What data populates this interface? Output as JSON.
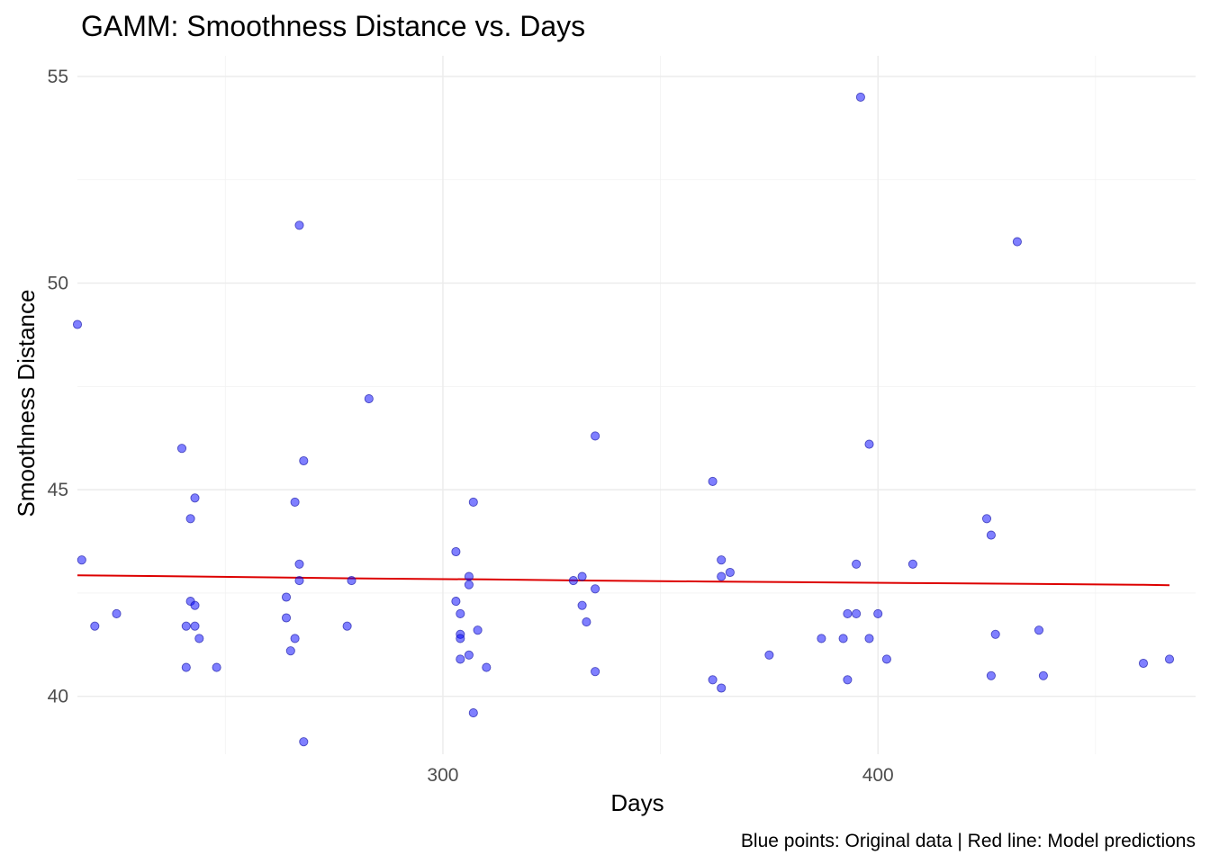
{
  "chart_data": {
    "type": "scatter",
    "title": "GAMM: Smoothness Distance vs. Days",
    "xlabel": "Days",
    "ylabel": "Smoothness Distance",
    "caption": "Blue points: Original data | Red line: Model predictions",
    "xlim": [
      216,
      473
    ],
    "ylim": [
      38.6,
      55.5
    ],
    "x_major_ticks": [
      300,
      400
    ],
    "x_minor_ticks": [
      250,
      350,
      450
    ],
    "y_major_ticks": [
      40,
      45,
      50,
      55
    ],
    "y_minor_ticks": [
      42.5,
      47.5,
      52.5
    ],
    "grid": true,
    "legend": "none",
    "point_color": "#0000ff",
    "line_color": "#dd0000",
    "series": [
      {
        "type": "scatter",
        "x": [
          216,
          217,
          220,
          225,
          240,
          241,
          241,
          242,
          242,
          243,
          243,
          243,
          244,
          248,
          264,
          264,
          265,
          266,
          266,
          267,
          267,
          267,
          268,
          268,
          278,
          279,
          283,
          303,
          303,
          304,
          304,
          304,
          304,
          306,
          306,
          306,
          307,
          307,
          308,
          310,
          330,
          332,
          332,
          333,
          335,
          335,
          335,
          362,
          362,
          364,
          364,
          364,
          366,
          375,
          387,
          392,
          393,
          393,
          395,
          395,
          396,
          398,
          398,
          400,
          402,
          408,
          425,
          426,
          426,
          427,
          432,
          437,
          438,
          461,
          467
        ],
        "y": [
          49.0,
          43.3,
          41.7,
          42.0,
          46.0,
          41.7,
          40.7,
          44.3,
          42.3,
          44.8,
          42.2,
          41.7,
          41.4,
          40.7,
          41.9,
          42.4,
          41.1,
          41.4,
          44.7,
          43.2,
          42.8,
          51.4,
          45.7,
          38.9,
          41.7,
          42.8,
          47.2,
          42.3,
          43.5,
          41.5,
          42.0,
          41.4,
          40.9,
          42.7,
          41.0,
          42.9,
          39.6,
          44.7,
          41.6,
          40.7,
          42.8,
          42.9,
          42.2,
          41.8,
          46.3,
          42.6,
          40.6,
          45.2,
          40.4,
          43.3,
          42.9,
          40.2,
          43.0,
          41.0,
          41.4,
          41.4,
          42.0,
          40.4,
          42.0,
          43.2,
          54.5,
          41.4,
          46.1,
          42.0,
          40.9,
          43.2,
          44.3,
          43.9,
          40.5,
          41.5,
          51.0,
          41.6,
          40.5,
          40.8,
          40.9
        ]
      },
      {
        "type": "line",
        "x": [
          216,
          235,
          260,
          285,
          310,
          335,
          360,
          385,
          410,
          435,
          460,
          467
        ],
        "y": [
          42.93,
          42.91,
          42.88,
          42.85,
          42.83,
          42.8,
          42.78,
          42.76,
          42.74,
          42.72,
          42.7,
          42.69
        ]
      }
    ]
  }
}
